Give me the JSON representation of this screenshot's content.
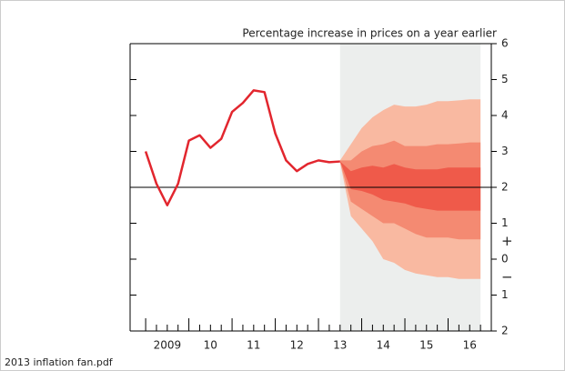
{
  "chart_data": {
    "type": "fan",
    "title": "Percentage increase in prices on a year earlier",
    "footer": "2013 inflation fan.pdf",
    "x": [
      2009,
      2009.25,
      2009.5,
      2009.75,
      2010,
      2010.25,
      2010.5,
      2010.75,
      2011,
      2011.25,
      2011.5,
      2011.75,
      2012,
      2012.25,
      2012.5,
      2012.75,
      2013,
      2013.25,
      2013.5
    ],
    "values": [
      3.0,
      2.1,
      1.5,
      2.1,
      3.3,
      3.45,
      3.1,
      3.35,
      4.1,
      4.35,
      4.7,
      4.65,
      3.5,
      2.75,
      2.45,
      2.65,
      2.75,
      2.7,
      2.72
    ],
    "color": "#e2262e",
    "fan_x": [
      2013.5,
      2013.75,
      2014,
      2014.25,
      2014.5,
      2014.75,
      2015,
      2015.25,
      2015.5,
      2015.75,
      2016,
      2016.25,
      2016.5,
      2016.75
    ],
    "bands": [
      {
        "color": "#f9b9a1",
        "lower": [
          2.7,
          1.2,
          0.85,
          0.5,
          0.0,
          -0.1,
          -0.3,
          -0.4,
          -0.45,
          -0.5,
          -0.5,
          -0.55,
          -0.55,
          -0.55
        ],
        "upper": [
          2.75,
          3.2,
          3.65,
          3.95,
          4.15,
          4.3,
          4.25,
          4.25,
          4.3,
          4.4,
          4.4,
          4.42,
          4.45,
          4.45
        ]
      },
      {
        "color": "#f48a72",
        "lower": [
          2.7,
          1.6,
          1.4,
          1.2,
          1.0,
          1.0,
          0.85,
          0.7,
          0.6,
          0.6,
          0.6,
          0.55,
          0.55,
          0.55
        ],
        "upper": [
          2.75,
          2.75,
          3.0,
          3.15,
          3.2,
          3.3,
          3.15,
          3.15,
          3.15,
          3.2,
          3.2,
          3.22,
          3.25,
          3.25
        ]
      },
      {
        "color": "#ef5a4a",
        "lower": [
          2.72,
          1.95,
          1.9,
          1.8,
          1.65,
          1.6,
          1.55,
          1.45,
          1.4,
          1.35,
          1.35,
          1.35,
          1.35,
          1.35
        ],
        "upper": [
          2.72,
          2.45,
          2.55,
          2.6,
          2.55,
          2.65,
          2.55,
          2.5,
          2.5,
          2.5,
          2.55,
          2.55,
          2.55,
          2.55
        ]
      }
    ],
    "shaded_xlim": [
      2013.5,
      2016.75
    ],
    "shade_color": "#eceeed",
    "reference_line": 2,
    "xlim": [
      2008.64,
      2017
    ],
    "xticks": [
      {
        "value": 2009.5,
        "label": "2009"
      },
      {
        "value": 2010.5,
        "label": "10"
      },
      {
        "value": 2011.5,
        "label": "11"
      },
      {
        "value": 2012.5,
        "label": "12"
      },
      {
        "value": 2013.5,
        "label": "13"
      },
      {
        "value": 2014.5,
        "label": "14"
      },
      {
        "value": 2015.5,
        "label": "15"
      },
      {
        "value": 2016.5,
        "label": "16"
      }
    ],
    "ylim": [
      -2,
      6
    ],
    "yticks": [
      {
        "value": -2,
        "label": "2"
      },
      {
        "value": -1,
        "label": "1"
      },
      0,
      1,
      2,
      3,
      4,
      5,
      6
    ],
    "sign_labels": [
      "+",
      "−"
    ]
  }
}
